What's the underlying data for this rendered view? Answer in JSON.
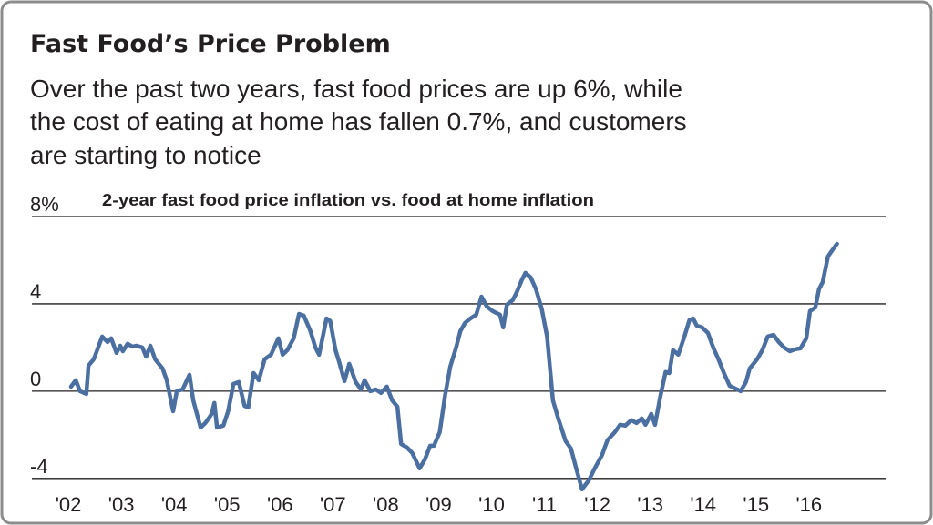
{
  "chart_data": {
    "type": "line",
    "title": "Fast Food’s Price Problem",
    "subtitle": [
      "Over the past two years, fast food prices are up 6%, while",
      "the cost of eating at home has fallen 0.7%, and customers",
      "are starting to notice"
    ],
    "chart_label": "2-year fast food price inflation vs. food at home inflation",
    "color": "#4a6fa0",
    "grid": true,
    "xlim": [
      2001.31,
      2017.45
    ],
    "xticks": [
      {
        "value": 2002,
        "label": "'02"
      },
      {
        "value": 2003,
        "label": "'03"
      },
      {
        "value": 2004,
        "label": "'04"
      },
      {
        "value": 2005,
        "label": "'05"
      },
      {
        "value": 2006,
        "label": "'06"
      },
      {
        "value": 2007,
        "label": "'07"
      },
      {
        "value": 2008,
        "label": "'08"
      },
      {
        "value": 2009,
        "label": "'09"
      },
      {
        "value": 2010,
        "label": "'10"
      },
      {
        "value": 2011,
        "label": "'11"
      },
      {
        "value": 2012,
        "label": "'12"
      },
      {
        "value": 2013,
        "label": "'13"
      },
      {
        "value": 2014,
        "label": "'14"
      },
      {
        "value": 2015,
        "label": "'15"
      },
      {
        "value": 2016,
        "label": "'16"
      }
    ],
    "ylim": [
      -4.8,
      8
    ],
    "yticks": [
      -4,
      0,
      4,
      {
        "value": 8,
        "label": "8%"
      }
    ],
    "x": [
      2002.05,
      2002.14,
      2002.22,
      2002.34,
      2002.38,
      2002.48,
      2002.64,
      2002.74,
      2002.81,
      2002.91,
      2002.98,
      2003.03,
      2003.12,
      2003.21,
      2003.29,
      2003.4,
      2003.47,
      2003.55,
      2003.64,
      2003.78,
      2003.86,
      2003.98,
      2004.05,
      2004.16,
      2004.29,
      2004.36,
      2004.5,
      2004.59,
      2004.71,
      2004.76,
      2004.81,
      2004.93,
      2005.02,
      2005.12,
      2005.22,
      2005.33,
      2005.4,
      2005.5,
      2005.6,
      2005.71,
      2005.83,
      2005.97,
      2006.05,
      2006.14,
      2006.26,
      2006.36,
      2006.45,
      2006.57,
      2006.67,
      2006.74,
      2006.88,
      2006.95,
      2007.05,
      2007.12,
      2007.22,
      2007.31,
      2007.43,
      2007.53,
      2007.6,
      2007.71,
      2007.81,
      2007.91,
      2008.02,
      2008.12,
      2008.22,
      2008.29,
      2008.4,
      2008.5,
      2008.64,
      2008.74,
      2008.84,
      2008.91,
      2009.02,
      2009.12,
      2009.22,
      2009.33,
      2009.41,
      2009.5,
      2009.6,
      2009.71,
      2009.81,
      2009.91,
      2010.02,
      2010.16,
      2010.22,
      2010.29,
      2010.4,
      2010.47,
      2010.57,
      2010.64,
      2010.74,
      2010.84,
      2010.95,
      2011.05,
      2011.16,
      2011.26,
      2011.4,
      2011.5,
      2011.6,
      2011.71,
      2011.84,
      2011.95,
      2012.09,
      2012.19,
      2012.33,
      2012.43,
      2012.53,
      2012.64,
      2012.74,
      2012.84,
      2012.91,
      2013.02,
      2013.09,
      2013.19,
      2013.29,
      2013.36,
      2013.43,
      2013.53,
      2013.64,
      2013.74,
      2013.81,
      2013.88,
      2013.98,
      2014.09,
      2014.19,
      2014.29,
      2014.4,
      2014.5,
      2014.6,
      2014.71,
      2014.81,
      2014.88,
      2015.02,
      2015.12,
      2015.22,
      2015.33,
      2015.43,
      2015.53,
      2015.64,
      2015.74,
      2015.84,
      2015.95,
      2016.02,
      2016.12,
      2016.19,
      2016.26,
      2016.36,
      2016.43,
      2016.53
    ],
    "values": [
      0.21,
      0.5,
      0,
      -0.13,
      1.17,
      1.46,
      2.5,
      2.25,
      2.42,
      1.75,
      2.08,
      1.83,
      2.17,
      2.04,
      2.08,
      2.0,
      1.58,
      2.08,
      1.46,
      1.04,
      0.5,
      -0.92,
      0,
      0.08,
      0.75,
      -0.42,
      -1.67,
      -1.46,
      -1.04,
      -0.54,
      -1.67,
      -1.58,
      -0.92,
      0.33,
      0.42,
      -0.67,
      -0.75,
      0.83,
      0.5,
      1.46,
      1.67,
      2.42,
      1.67,
      1.88,
      2.42,
      3.54,
      3.46,
      2.79,
      2.0,
      1.67,
      3.33,
      3.21,
      1.88,
      1.33,
      0.46,
      1.25,
      0.42,
      0.08,
      0.5,
      0,
      0.08,
      -0.08,
      0.21,
      -0.42,
      -0.71,
      -2.42,
      -2.58,
      -2.83,
      -3.54,
      -3.13,
      -2.5,
      -2.5,
      -1.88,
      -0.21,
      1.13,
      2.0,
      2.75,
      3.13,
      3.33,
      3.5,
      4.33,
      3.88,
      3.67,
      3.5,
      2.92,
      3.96,
      4.17,
      4.5,
      5.08,
      5.42,
      5.21,
      4.67,
      3.75,
      2.5,
      -0.42,
      -1.25,
      -2.29,
      -2.63,
      -3.54,
      -4.5,
      -4.08,
      -3.54,
      -2.92,
      -2.25,
      -1.88,
      -1.54,
      -1.58,
      -1.33,
      -1.46,
      -1.25,
      -1.54,
      -1.04,
      -1.54,
      -0.25,
      0.88,
      0.83,
      1.88,
      1.67,
      2.46,
      3.25,
      3.33,
      3.0,
      2.92,
      2.67,
      2.0,
      1.46,
      0.79,
      0.25,
      0.13,
      0,
      0.42,
      1.04,
      1.46,
      1.88,
      2.5,
      2.58,
      2.25,
      2.0,
      1.83,
      1.92,
      1.96,
      2.42,
      3.67,
      3.83,
      4.67,
      5.0,
      6.17,
      6.42,
      6.75
    ]
  }
}
